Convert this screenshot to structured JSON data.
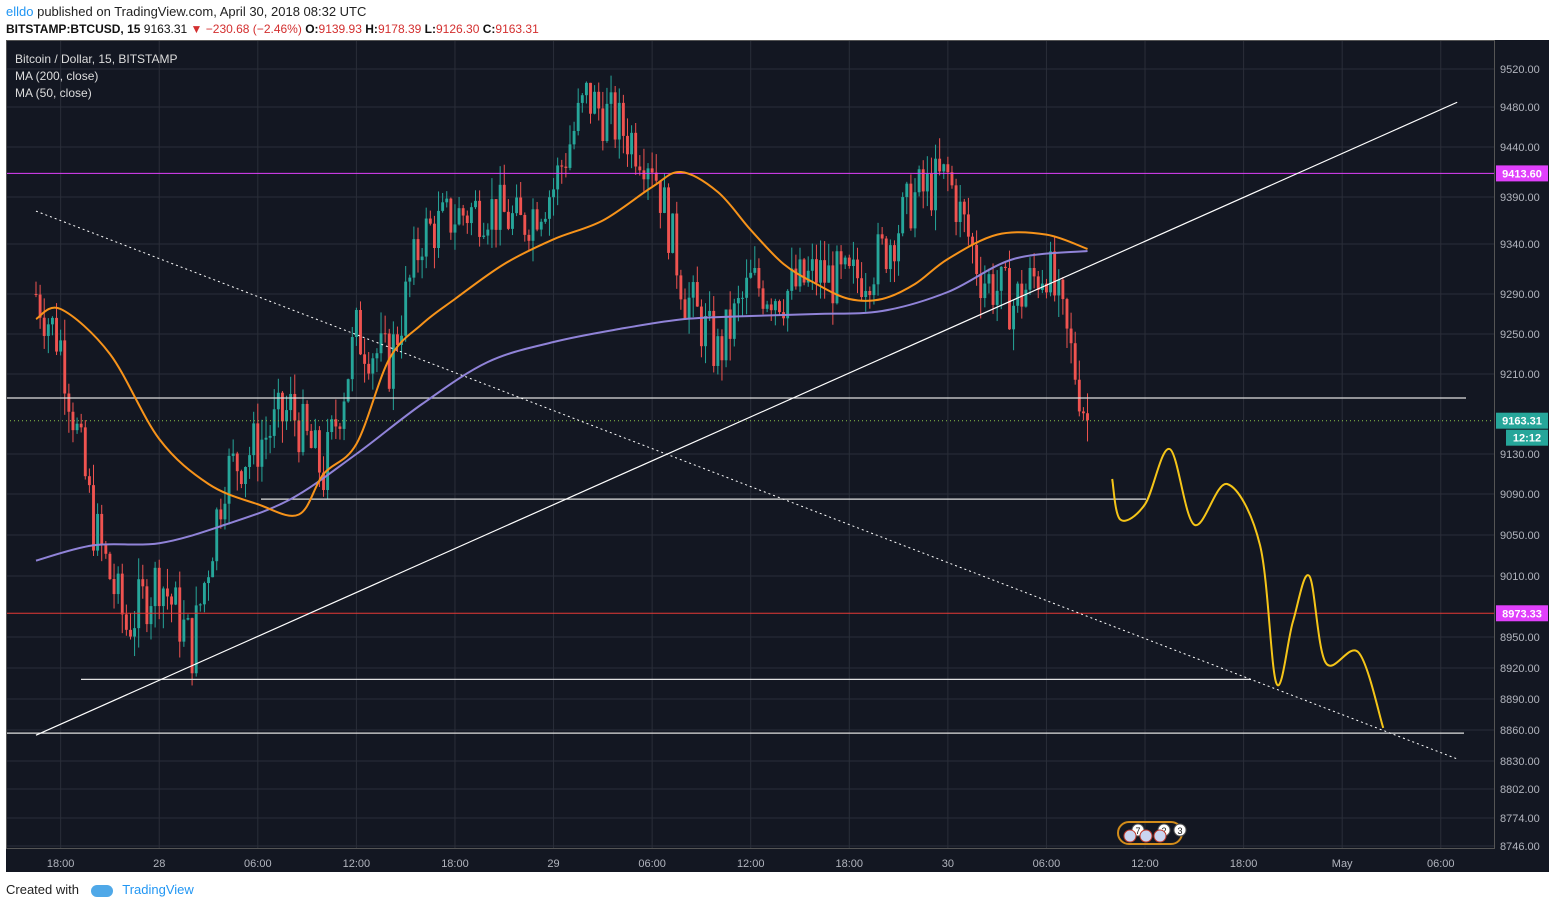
{
  "header": {
    "user": "elldo",
    "published_text": "published on TradingView.com, April 30, 2018 08:32 UTC",
    "symbol": "BITSTAMP:BTCUSD, 15",
    "last": "9163.31",
    "change": "−230.68 (−2.46%)",
    "o_label": "O:",
    "o": "9139.93",
    "h_label": "H:",
    "h": "9178.39",
    "l_label": "L:",
    "l": "9126.30",
    "c_label": "C:",
    "c": "9163.31"
  },
  "legend": {
    "title": "Bitcoin / Dollar, 15, BITSTAMP",
    "ma200": "MA (200, close)",
    "ma50": "MA (50, close)"
  },
  "footer": {
    "created_with": "Created with",
    "brand": "TradingView"
  },
  "colors": {
    "background": "#131722",
    "grid": "#2a2e39",
    "up": "#26a69a",
    "down": "#ef5350",
    "ma50": "#f7931a",
    "ma200": "#9083d8",
    "resistance": "#e040fb",
    "support": "#e53935",
    "annotation": "#f5c518",
    "axis_text": "#b2b5be"
  },
  "chart_data": {
    "type": "line",
    "title": "Bitcoin / Dollar, 15, BITSTAMP",
    "y_ticks": [
      9520.0,
      9480.0,
      9440.0,
      9390.0,
      9340.0,
      9290.0,
      9250.0,
      9210.0,
      9130.0,
      9090.0,
      9050.0,
      9010.0,
      8950.0,
      8920.0,
      8890.0,
      8860.0,
      8830.0,
      8802.0,
      8774.0,
      8746.0
    ],
    "x_ticks": [
      "18:00",
      "28",
      "06:00",
      "12:00",
      "18:00",
      "29",
      "06:00",
      "12:00",
      "18:00",
      "30",
      "06:00",
      "12:00",
      "18:00",
      "May",
      "06:00"
    ],
    "price_tags": {
      "last": {
        "value": 9163.31,
        "label": "9163.31",
        "countdown": "12:12"
      },
      "resistance": {
        "value": 9413.6,
        "label": "9413.60"
      },
      "support": {
        "value": 8973.33,
        "label": "8973.33"
      }
    },
    "horizontal_levels": [
      9186,
      9085,
      8909,
      8857
    ],
    "series": [
      {
        "name": "Close",
        "x": [
          "Apr 27 16:30",
          "Apr 27 18:00",
          "Apr 27 20:00",
          "Apr 27 22:00",
          "Apr 28 00:00",
          "Apr 28 02:00",
          "Apr 28 04:00",
          "Apr 28 06:00",
          "Apr 28 08:00",
          "Apr 28 10:00",
          "Apr 28 12:00",
          "Apr 28 14:00",
          "Apr 28 16:00",
          "Apr 28 18:00",
          "Apr 28 20:00",
          "Apr 28 22:00",
          "Apr 29 00:00",
          "Apr 29 02:00",
          "Apr 29 04:00",
          "Apr 29 06:00",
          "Apr 29 08:00",
          "Apr 29 10:00",
          "Apr 29 12:00",
          "Apr 29 14:00",
          "Apr 29 16:00",
          "Apr 29 18:00",
          "Apr 29 20:00",
          "Apr 29 22:00",
          "Apr 30 00:00",
          "Apr 30 02:00",
          "Apr 30 04:00",
          "Apr 30 06:00",
          "Apr 30 07:30",
          "Apr 30 08:30"
        ],
        "y": [
          9290,
          9240,
          9060,
          8960,
          9010,
          8940,
          9110,
          9140,
          9175,
          9110,
          9250,
          9220,
          9350,
          9370,
          9380,
          9360,
          9400,
          9490,
          9460,
          9430,
          9290,
          9230,
          9300,
          9290,
          9310,
          9300,
          9330,
          9390,
          9410,
          9310,
          9280,
          9320,
          9230,
          9163
        ]
      },
      {
        "name": "MA (50, close)",
        "x": [
          "Apr 27 16:30",
          "Apr 27 18:00",
          "Apr 27 21:00",
          "Apr 28 00:00",
          "Apr 28 03:00",
          "Apr 28 06:00",
          "Apr 28 08:30",
          "Apr 28 10:00",
          "Apr 28 12:00",
          "Apr 28 14:00",
          "Apr 28 16:00",
          "Apr 28 18:00",
          "Apr 28 21:00",
          "Apr 29 00:00",
          "Apr 29 03:00",
          "Apr 29 06:00",
          "Apr 29 07:45",
          "Apr 29 10:00",
          "Apr 29 12:00",
          "Apr 29 14:00",
          "Apr 29 16:00",
          "Apr 29 18:00",
          "Apr 29 20:00",
          "Apr 29 22:00",
          "Apr 30 00:00",
          "Apr 30 03:00",
          "Apr 30 06:00",
          "Apr 30 08:30"
        ],
        "y": [
          9265,
          9275,
          9230,
          9145,
          9100,
          9080,
          9070,
          9110,
          9140,
          9225,
          9260,
          9285,
          9320,
          9345,
          9365,
          9400,
          9415,
          9395,
          9355,
          9320,
          9300,
          9285,
          9285,
          9300,
          9325,
          9350,
          9350,
          9335
        ]
      },
      {
        "name": "MA (200, close)",
        "x": [
          "Apr 27 16:30",
          "Apr 27 20:00",
          "Apr 28 00:00",
          "Apr 28 04:00",
          "Apr 28 08:00",
          "Apr 28 12:00",
          "Apr 28 16:00",
          "Apr 28 20:00",
          "Apr 29 00:00",
          "Apr 29 04:00",
          "Apr 29 08:00",
          "Apr 29 12:00",
          "Apr 29 16:00",
          "Apr 29 20:00",
          "Apr 30 00:00",
          "Apr 30 04:00",
          "Apr 30 08:30"
        ],
        "y": [
          9025,
          9040,
          9042,
          9060,
          9085,
          9130,
          9180,
          9222,
          9242,
          9255,
          9265,
          9268,
          9270,
          9273,
          9292,
          9325,
          9333
        ]
      }
    ],
    "trendlines": [
      {
        "x": [
          "Apr 27 16:30",
          "May 1 07:00"
        ],
        "y": [
          8855,
          9485
        ]
      },
      {
        "x": [
          "Apr 27 16:30",
          "May 1 07:00"
        ],
        "y": [
          9375,
          8832
        ],
        "style": "dotted"
      }
    ],
    "projection": {
      "x": [
        "Apr 30 10:00",
        "Apr 30 10:30",
        "Apr 30 12:00",
        "Apr 30 13:30",
        "Apr 30 15:00",
        "Apr 30 17:00",
        "Apr 30 19:00",
        "Apr 30 20:00",
        "Apr 30 21:00",
        "Apr 30 22:00",
        "Apr 30 23:00",
        "May 1 01:00",
        "May 1 02:30"
      ],
      "y": [
        9105,
        9065,
        9080,
        9135,
        9060,
        9100,
        9040,
        8905,
        8965,
        9010,
        8925,
        8935,
        8862
      ]
    }
  }
}
